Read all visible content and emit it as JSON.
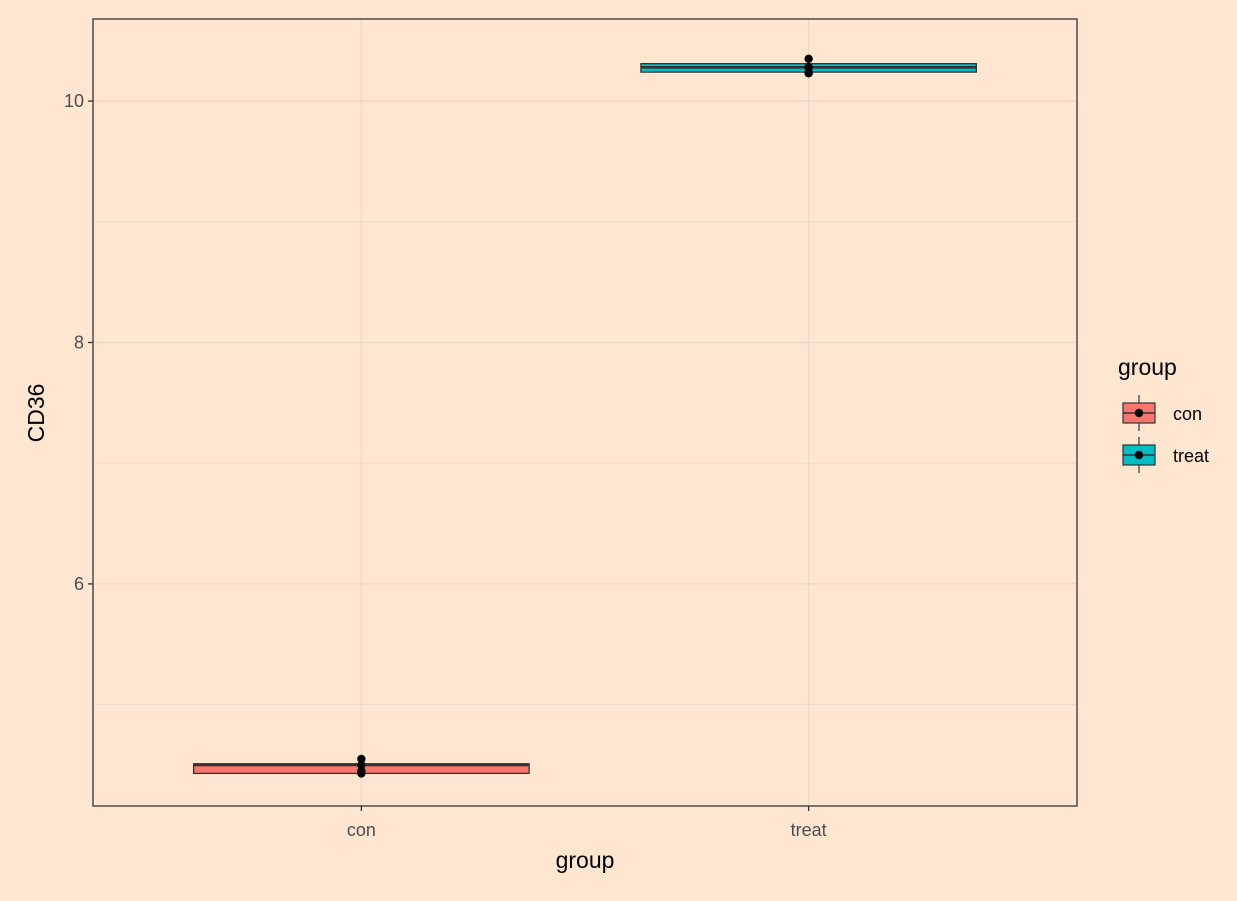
{
  "chart_data": {
    "type": "boxplot",
    "categories": [
      "con",
      "treat"
    ],
    "xlabel": "group",
    "ylabel": "CD36",
    "ylim": [
      4.16,
      10.68
    ],
    "yticks": [
      6,
      8,
      10
    ],
    "grid": true,
    "legend": {
      "title": "group",
      "placement": "right",
      "entries": [
        "con",
        "treat"
      ]
    },
    "colors": {
      "con": "#F8766D",
      "treat": "#00BFC4",
      "panel_bg": "#FFE6D1",
      "grid": "#EBD9CB",
      "border": "#333333",
      "point": "#000000"
    },
    "series": [
      {
        "name": "con",
        "box": {
          "lower": 4.43,
          "q1": 4.43,
          "median": 4.5,
          "q3": 4.51,
          "upper": 4.55
        },
        "points": [
          4.55,
          4.5,
          4.45,
          4.43
        ]
      },
      {
        "name": "treat",
        "box": {
          "lower": 10.23,
          "q1": 10.24,
          "median": 10.28,
          "q3": 10.31,
          "upper": 10.35
        },
        "points": [
          10.35,
          10.28,
          10.24,
          10.23
        ]
      }
    ]
  }
}
